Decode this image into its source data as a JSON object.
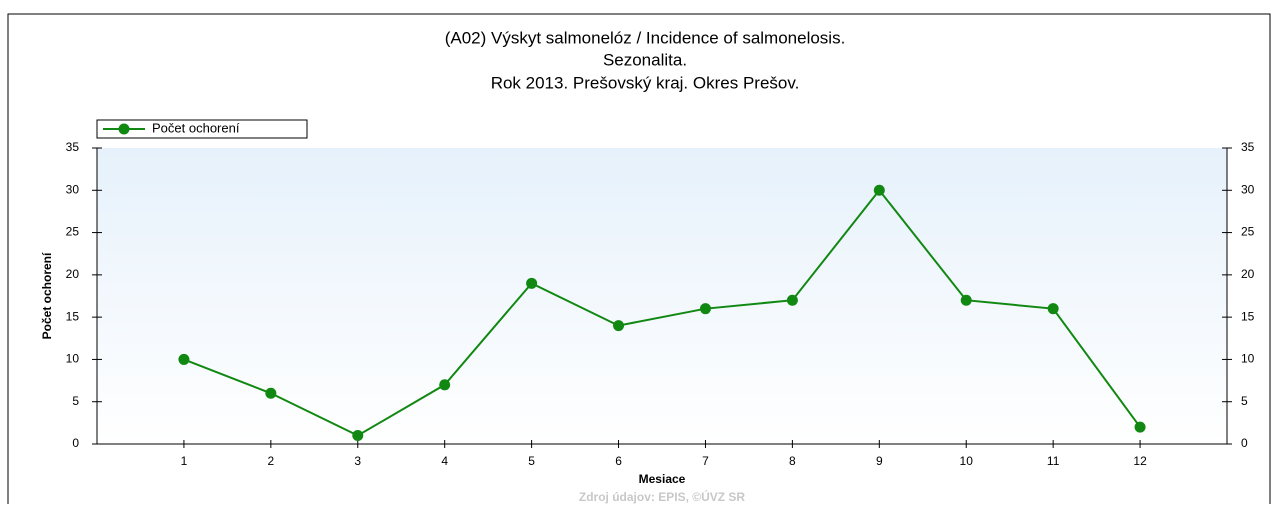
{
  "chart_data": {
    "type": "line",
    "title": [
      "(A02) Výskyt salmonelóz / Incidence of salmonelosis.",
      "Sezonalita.",
      "Rok 2013. Prešovský kraj. Okres Prešov."
    ],
    "x_label": "Mesiace",
    "y_label": "Počet ochorení",
    "x": [
      1,
      2,
      3,
      4,
      5,
      6,
      7,
      8,
      9,
      10,
      11,
      12
    ],
    "series": [
      {
        "name": "Počet ochorení",
        "color": "#118811",
        "values": [
          10,
          6,
          1,
          7,
          19,
          14,
          16,
          17,
          30,
          17,
          16,
          2
        ]
      }
    ],
    "xlim": [
      0,
      13
    ],
    "xticks": [
      1,
      2,
      3,
      4,
      5,
      6,
      7,
      8,
      9,
      10,
      11,
      12
    ],
    "ylim": [
      0,
      35
    ],
    "yticks": [
      0,
      5,
      10,
      15,
      20,
      25,
      30,
      35
    ],
    "legend": "top-left",
    "source": "Zdroj údajov: EPIS, ©ÚVZ SR"
  }
}
